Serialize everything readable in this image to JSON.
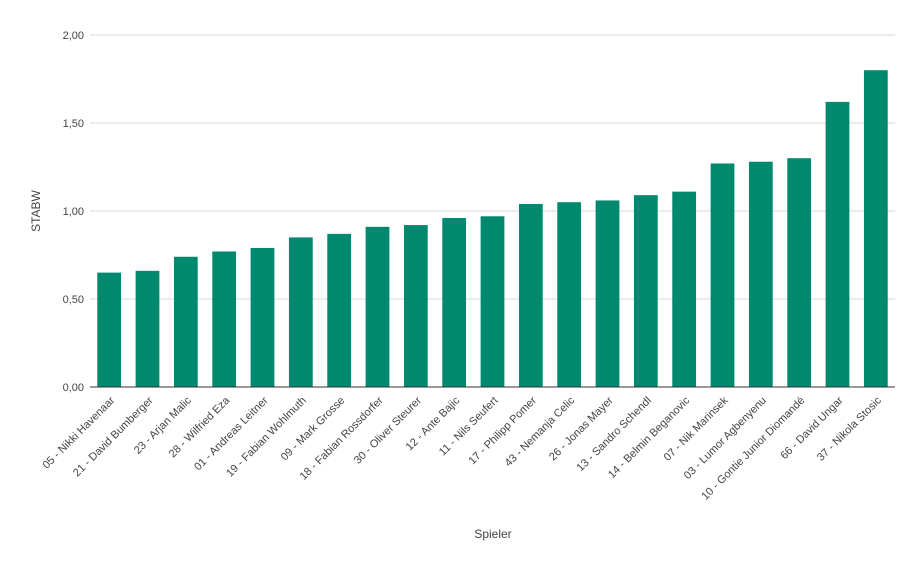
{
  "chart_data": {
    "type": "bar",
    "title": "",
    "xlabel": "Spieler",
    "ylabel": "STABW",
    "ylim": [
      0,
      2.0
    ],
    "yticks": [
      "0,00",
      "0,50",
      "1,00",
      "1,50",
      "2,00"
    ],
    "ytick_values": [
      0,
      0.5,
      1.0,
      1.5,
      2.0
    ],
    "grid": true,
    "legend": "none",
    "bar_color": "#00896e",
    "grid_color": "#d9d9d9",
    "categories": [
      "05 - Nikki Havenaar",
      "21 - David Bumberger",
      "23 - Arjan Malic",
      "28 - Wilfried Eza",
      "01 - Andreas Leitner",
      "19 - Fabian Wohlmuth",
      "09 - Mark Grosse",
      "18 - Fabian Rossdorfer",
      "30 - Oliver Steurer",
      "12 - Ante Bajic",
      "11 - Nils Seufert",
      "17 - Philipp Pomer",
      "43 - Nemanja Celic",
      "26 - Jonas Mayer",
      "13 - Sandro Schendl",
      "14 - Belmin Beganovic",
      "07 - Nik Marinsek",
      "03 - Lumor Agbenyenu",
      "10 - Gontie Junior Diomandé",
      "66 - David Ungar",
      "37 - Nikola Stosic"
    ],
    "values": [
      0.65,
      0.66,
      0.74,
      0.77,
      0.79,
      0.85,
      0.87,
      0.91,
      0.92,
      0.96,
      0.97,
      1.04,
      1.05,
      1.06,
      1.09,
      1.11,
      1.27,
      1.28,
      1.3,
      1.62,
      1.8
    ]
  }
}
